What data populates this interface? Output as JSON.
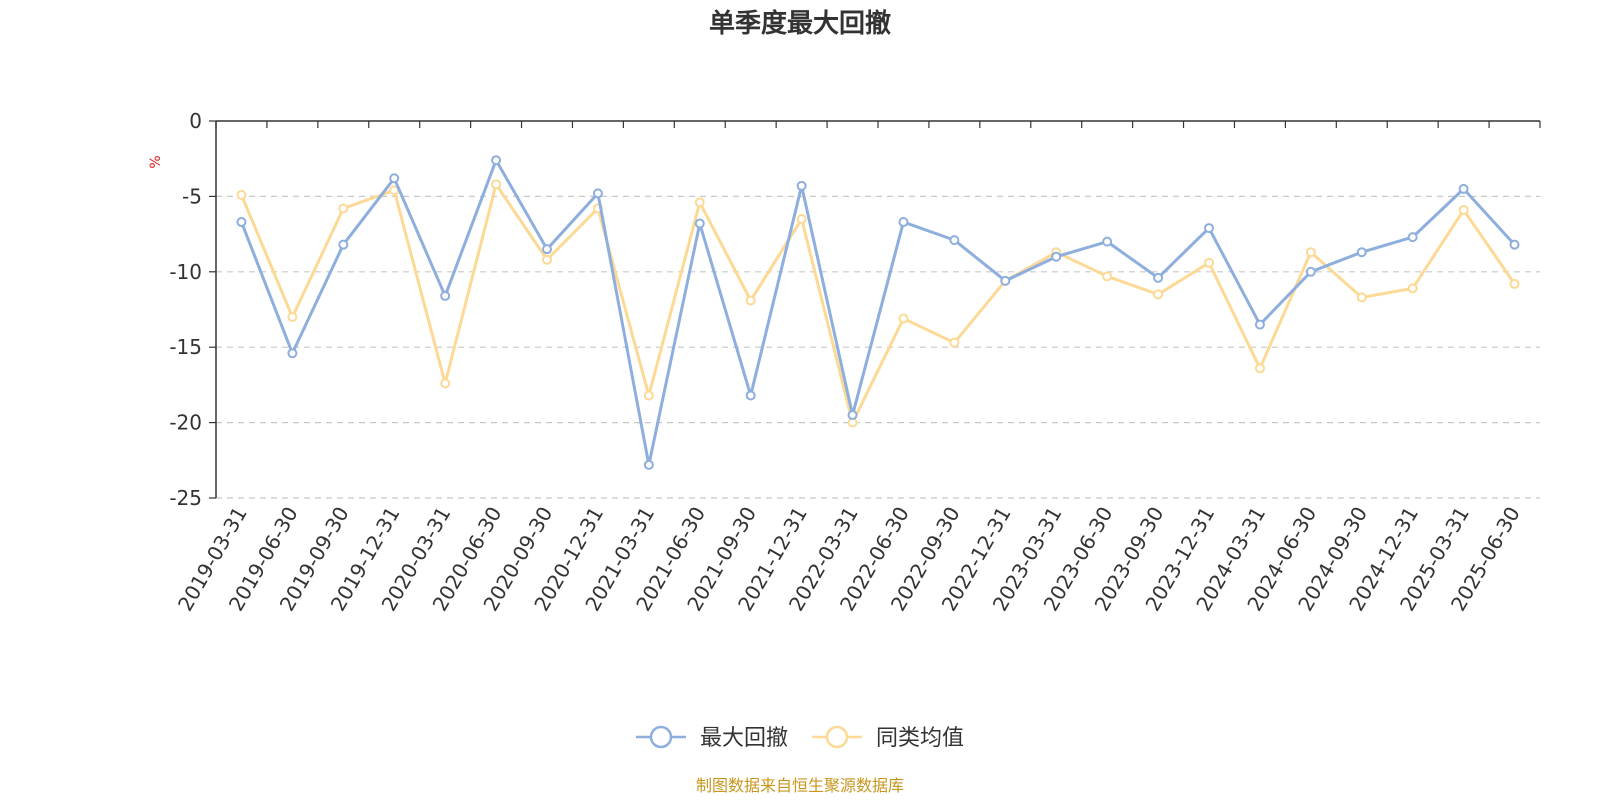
{
  "chart_data": {
    "type": "line",
    "title": "单季度最大回撤",
    "ylabel": "%",
    "ylim": [
      -25,
      0
    ],
    "yticks": [
      0,
      -5,
      -10,
      -15,
      -20,
      -25
    ],
    "grid": true,
    "legend_position": "bottom",
    "categories": [
      "2019-03-31",
      "2019-06-30",
      "2019-09-30",
      "2019-12-31",
      "2020-03-31",
      "2020-06-30",
      "2020-09-30",
      "2020-12-31",
      "2021-03-31",
      "2021-06-30",
      "2021-09-30",
      "2021-12-31",
      "2022-03-31",
      "2022-06-30",
      "2022-09-30",
      "2022-12-31",
      "2023-03-31",
      "2023-06-30",
      "2023-09-30",
      "2023-12-31",
      "2024-03-31",
      "2024-06-30",
      "2024-09-30",
      "2024-12-31",
      "2025-03-31",
      "2025-06-30"
    ],
    "series": [
      {
        "name": "最大回撤",
        "color": "#8eaedd",
        "values": [
          -6.7,
          -15.4,
          -8.2,
          -3.8,
          -11.6,
          -2.6,
          -8.5,
          -4.8,
          -22.8,
          -6.8,
          -18.2,
          -4.3,
          -19.5,
          -6.7,
          -7.9,
          -10.6,
          -9.0,
          -8.0,
          -10.4,
          -7.1,
          -13.5,
          -10.0,
          -8.7,
          -7.7,
          -4.5,
          -8.2
        ]
      },
      {
        "name": "同类均值",
        "color": "#fcd995",
        "values": [
          -4.9,
          -13.0,
          -5.8,
          -4.6,
          -17.4,
          -4.2,
          -9.2,
          -5.8,
          -18.2,
          -5.4,
          -11.9,
          -6.5,
          -20.0,
          -13.1,
          -14.7,
          -10.6,
          -8.7,
          -10.3,
          -11.5,
          -9.4,
          -16.4,
          -8.7,
          -11.7,
          -11.1,
          -5.9,
          -10.8
        ]
      }
    ]
  },
  "footer": {
    "text": "制图数据来自恒生聚源数据库",
    "color": "#c8961e"
  }
}
